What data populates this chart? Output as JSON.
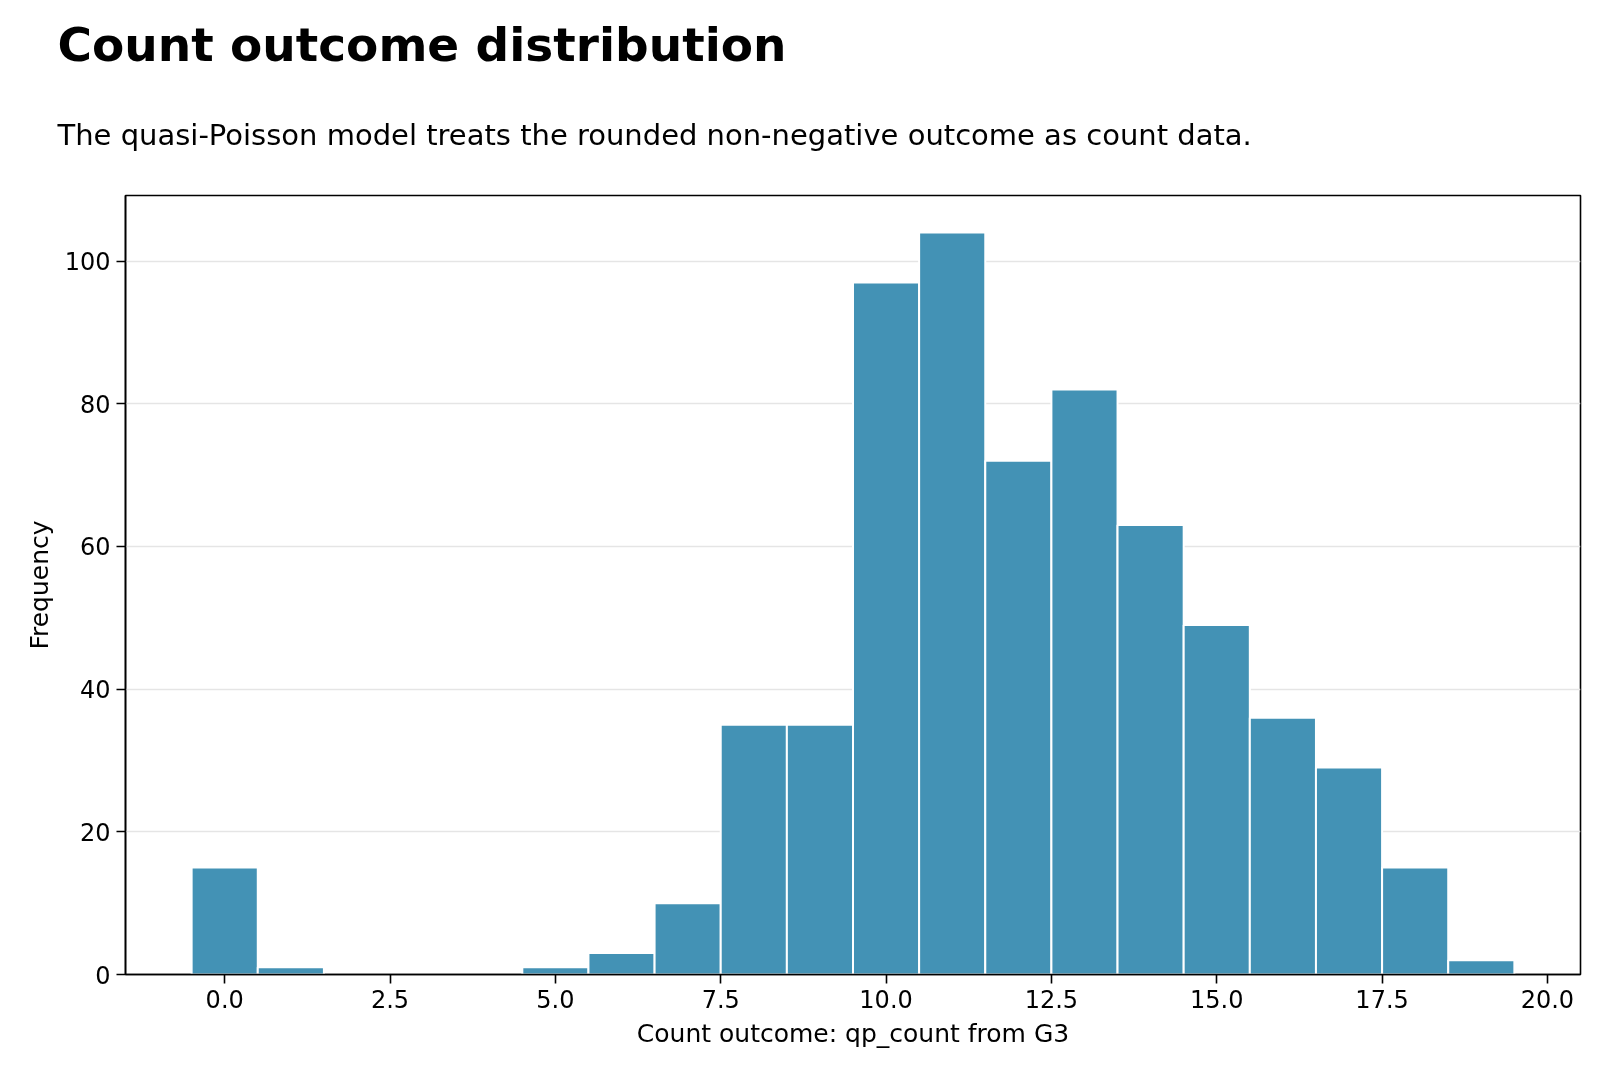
{
  "chart_data": {
    "type": "histogram",
    "title": "Count outcome distribution",
    "subtitle": "The quasi-Poisson model treats the rounded non-negative outcome as count data.",
    "xlabel": "Count outcome: qp_count from G3",
    "ylabel": "Frequency",
    "bins": [
      -0.5,
      0.5,
      1.5,
      2.5,
      3.5,
      4.5,
      5.5,
      6.5,
      7.5,
      8.5,
      9.5,
      10.5,
      11.5,
      12.5,
      13.5,
      14.5,
      15.5,
      16.5,
      17.5,
      18.5,
      19.5
    ],
    "values": [
      15,
      1,
      0,
      0,
      0,
      1,
      3,
      10,
      35,
      35,
      97,
      104,
      72,
      82,
      63,
      49,
      36,
      29,
      15,
      2
    ],
    "color": "#4392b5",
    "xlim": [
      -1.5,
      20.5
    ],
    "ylim": [
      0,
      109.2
    ],
    "xticks": [
      {
        "value": 0,
        "label": "0.0"
      },
      2.5,
      {
        "value": 5,
        "label": "5.0"
      },
      7.5,
      {
        "value": 10,
        "label": "10.0"
      },
      12.5,
      {
        "value": 15,
        "label": "15.0"
      },
      17.5,
      {
        "value": 20,
        "label": "20.0"
      }
    ],
    "yticks": [
      0,
      20,
      40,
      60,
      80,
      100
    ],
    "grid": "y"
  }
}
